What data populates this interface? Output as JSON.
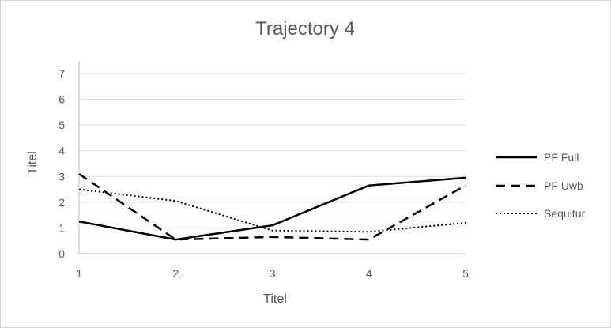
{
  "chart_data": {
    "type": "line",
    "title": "Trajectory 4",
    "xlabel": "Titel",
    "ylabel": "Titel",
    "x": [
      1,
      2,
      3,
      4,
      5
    ],
    "x_ticks": [
      "1",
      "2",
      "3",
      "4",
      "5"
    ],
    "ylim": [
      0,
      7
    ],
    "y_ticks": [
      "0",
      "1",
      "2",
      "3",
      "4",
      "5",
      "6",
      "7"
    ],
    "grid": "horizontal",
    "legend_position": "right",
    "series": [
      {
        "name": "PF Full",
        "style": "solid",
        "color": "#000000",
        "values": [
          1.25,
          0.55,
          1.1,
          2.65,
          2.95
        ]
      },
      {
        "name": "PF Uwb",
        "style": "dashed",
        "color": "#000000",
        "values": [
          3.1,
          0.55,
          0.65,
          0.55,
          2.65
        ]
      },
      {
        "name": "Sequitur",
        "style": "dotted",
        "color": "#000000",
        "values": [
          2.5,
          2.05,
          0.9,
          0.85,
          1.2
        ]
      }
    ]
  }
}
